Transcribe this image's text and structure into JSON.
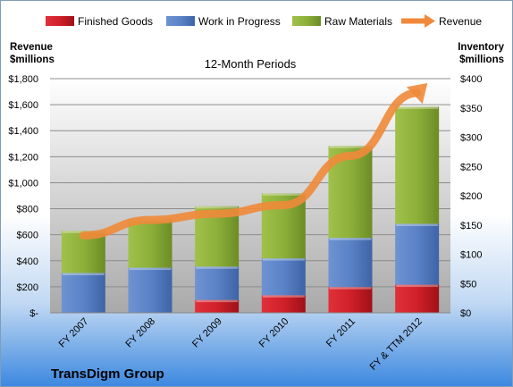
{
  "chart_data": {
    "type": "bar",
    "title": "12-Month Periods",
    "company": "TransDigm Group",
    "categories": [
      "FY 2007",
      "FY 2008",
      "FY 2009",
      "FY 2010",
      "FY 2011",
      "FY & TTM 2012"
    ],
    "series": [
      {
        "name": "Finished Goods",
        "axis": "right",
        "stack": "inventory",
        "color": "#d9262e",
        "values": [
          0,
          0,
          22,
          30,
          44,
          48
        ]
      },
      {
        "name": "Work in Progress",
        "axis": "right",
        "stack": "inventory",
        "color": "#5a82c6",
        "values": [
          68,
          77,
          57,
          63,
          84,
          104
        ]
      },
      {
        "name": "Raw Materials",
        "axis": "right",
        "stack": "inventory",
        "color": "#8fb13a",
        "values": [
          72,
          83,
          103,
          111,
          157,
          200
        ]
      },
      {
        "name": "Revenue",
        "axis": "left",
        "type": "line",
        "color": "#f0893a",
        "values": [
          595,
          714,
          762,
          828,
          1206,
          1690
        ]
      }
    ],
    "left_axis": {
      "label_line1": "Revenue",
      "label_line2": "$millions",
      "range": [
        0,
        1800
      ],
      "ticks": [
        "$-",
        "$200",
        "$400",
        "$600",
        "$800",
        "$1,000",
        "$1,200",
        "$1,400",
        "$1,600",
        "$1,800"
      ]
    },
    "right_axis": {
      "label_line1": "Inventory",
      "label_line2": "$millions",
      "range": [
        0,
        400
      ],
      "ticks": [
        "$0",
        "$50",
        "$100",
        "$150",
        "$200",
        "$250",
        "$300",
        "$350",
        "$400"
      ]
    },
    "legend_position": "top",
    "grid": true
  }
}
